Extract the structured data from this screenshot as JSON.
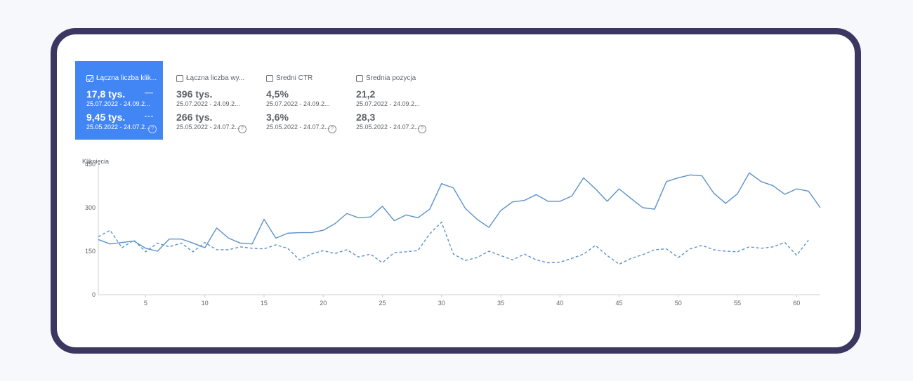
{
  "metrics": [
    {
      "title": "Łączna liczba klik...",
      "checked": true,
      "value": "17,8 tys.",
      "date": "25.07.2022 - 24.09.2...",
      "value2": "9,45 tys.",
      "date2": "25.05.2022 - 24.07.2..."
    },
    {
      "title": "Łączna liczba wy...",
      "checked": false,
      "value": "396 tys.",
      "date": "25.07.2022 - 24.09.2...",
      "value2": "266 tys.",
      "date2": "25.05.2022 - 24.07.2..."
    },
    {
      "title": "Średni CTR",
      "checked": false,
      "value": "4,5%",
      "date": "25.07.2022 - 24.09.2...",
      "value2": "3,6%",
      "date2": "25.05.2022 - 24.07.2..."
    },
    {
      "title": "Średnia pozycja",
      "checked": false,
      "value": "21,2",
      "date": "25.07.2022 - 24.09.2...",
      "value2": "28,3",
      "date2": "25.05.2022 - 24.07.2..."
    }
  ],
  "colors": {
    "accent": "#4285f4",
    "line": "#5b92c9",
    "frame": "#3b3760"
  },
  "chart_data": {
    "type": "line",
    "ylabel": "Kliknięcia",
    "ylim": [
      0,
      450
    ],
    "yticks": [
      0,
      150,
      300,
      450
    ],
    "xlim": [
      1,
      62
    ],
    "xticks": [
      5,
      10,
      15,
      20,
      25,
      30,
      35,
      40,
      45,
      50,
      55,
      60
    ],
    "grid": false,
    "series": [
      {
        "style": "solid",
        "x": [
          1,
          2,
          3,
          4,
          5,
          6,
          7,
          8,
          9,
          10,
          11,
          12,
          13,
          14,
          15,
          16,
          17,
          18,
          19,
          20,
          21,
          22,
          23,
          24,
          25,
          26,
          27,
          28,
          29,
          30,
          31,
          32,
          33,
          34,
          35,
          36,
          37,
          38,
          39,
          40,
          41,
          42,
          43,
          44,
          45,
          46,
          47,
          48,
          49,
          50,
          51,
          52,
          53,
          54,
          55,
          56,
          57,
          58,
          59,
          60,
          61,
          62
        ],
        "values": [
          190,
          175,
          180,
          185,
          160,
          150,
          192,
          192,
          178,
          162,
          230,
          195,
          178,
          175,
          260,
          195,
          212,
          214,
          214,
          222,
          245,
          280,
          265,
          268,
          305,
          255,
          275,
          265,
          295,
          383,
          368,
          298,
          260,
          232,
          290,
          320,
          325,
          345,
          322,
          322,
          340,
          403,
          365,
          322,
          365,
          332,
          300,
          295,
          390,
          403,
          413,
          410,
          350,
          315,
          348,
          420,
          390,
          376,
          346,
          365,
          357,
          300
        ]
      },
      {
        "style": "dashed",
        "x": [
          1,
          2,
          3,
          4,
          5,
          6,
          7,
          8,
          9,
          10,
          11,
          12,
          13,
          14,
          15,
          16,
          17,
          18,
          19,
          20,
          21,
          22,
          23,
          24,
          25,
          26,
          27,
          28,
          29,
          30,
          31,
          32,
          33,
          34,
          35,
          36,
          37,
          38,
          39,
          40,
          41,
          42,
          43,
          44,
          45,
          46,
          47,
          48,
          49,
          50,
          51,
          52,
          53,
          54,
          55,
          56,
          57,
          58,
          59,
          60,
          61
        ],
        "values": [
          200,
          222,
          162,
          188,
          148,
          178,
          165,
          178,
          148,
          180,
          155,
          155,
          165,
          160,
          158,
          172,
          160,
          120,
          140,
          152,
          142,
          155,
          130,
          140,
          110,
          145,
          148,
          152,
          210,
          250,
          140,
          118,
          128,
          150,
          135,
          120,
          140,
          120,
          110,
          112,
          125,
          140,
          170,
          135,
          105,
          125,
          138,
          155,
          158,
          128,
          158,
          170,
          155,
          150,
          148,
          165,
          160,
          165,
          180,
          136,
          188
        ]
      }
    ]
  }
}
